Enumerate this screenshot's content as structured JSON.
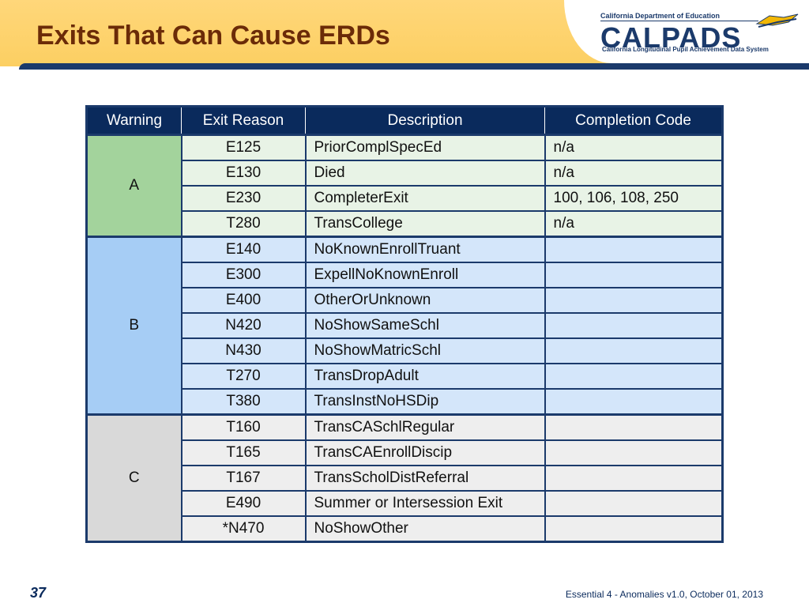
{
  "header": {
    "title": "Exits That Can Cause ERDs",
    "logo": {
      "department": "California Department of Education",
      "wordmark": "CALPADS",
      "subtitle": "California Longitudinal Pupil Achievement Data System"
    }
  },
  "table": {
    "columns": [
      "Warning",
      "Exit Reason",
      "Description",
      "Completion Code"
    ],
    "groups": [
      {
        "warning": "A",
        "rows": [
          {
            "reason": "E125",
            "description": "PriorComplSpecEd",
            "code": "n/a"
          },
          {
            "reason": "E130",
            "description": "Died",
            "code": "n/a"
          },
          {
            "reason": "E230",
            "description": "CompleterExit",
            "code": "100, 106, 108, 250"
          },
          {
            "reason": "T280",
            "description": "TransCollege",
            "code": "n/a"
          }
        ]
      },
      {
        "warning": "B",
        "rows": [
          {
            "reason": "E140",
            "description": "NoKnownEnrollTruant",
            "code": ""
          },
          {
            "reason": "E300",
            "description": "ExpellNoKnownEnroll",
            "code": ""
          },
          {
            "reason": "E400",
            "description": "OtherOrUnknown",
            "code": ""
          },
          {
            "reason": "N420",
            "description": "NoShowSameSchl",
            "code": ""
          },
          {
            "reason": "N430",
            "description": "NoShowMatricSchl",
            "code": ""
          },
          {
            "reason": "T270",
            "description": "TransDropAdult",
            "code": ""
          },
          {
            "reason": "T380",
            "description": "TransInstNoHSDip",
            "code": ""
          }
        ]
      },
      {
        "warning": "C",
        "rows": [
          {
            "reason": "T160",
            "description": "TransCASchlRegular",
            "code": ""
          },
          {
            "reason": "T165",
            "description": "TransCAEnrollDiscip",
            "code": ""
          },
          {
            "reason": "T167",
            "description": "TransScholDistReferral",
            "code": ""
          },
          {
            "reason": "E490",
            "description": "Summer or Intersession Exit",
            "code": ""
          },
          {
            "reason": "*N470",
            "description": "NoShowOther",
            "code": ""
          }
        ]
      }
    ]
  },
  "footer": {
    "slide_number": "37",
    "text": "Essential 4 - Anomalies v1.0, October 01, 2013"
  },
  "colors": {
    "header_band": "#fccf62",
    "title": "#6b2b08",
    "navy": "#1b3a6b",
    "group_a": "#a3d39c",
    "group_b": "#a6cdf5",
    "group_c": "#d9d9d9"
  }
}
